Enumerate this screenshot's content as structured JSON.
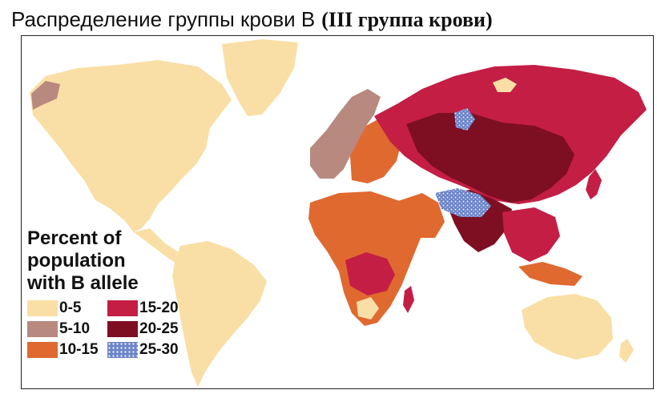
{
  "title": {
    "main": "Распределение группы крови В",
    "sub": "(III группа крови)"
  },
  "legend": {
    "title_lines": [
      "Percent of",
      "population",
      "with B allele"
    ],
    "items": [
      {
        "label": "0-5",
        "color": "#f9dfa6",
        "pattern": "none"
      },
      {
        "label": "15-20",
        "color": "#c41e45",
        "pattern": "none"
      },
      {
        "label": "5-10",
        "color": "#b8897f",
        "pattern": "none"
      },
      {
        "label": "20-25",
        "color": "#7e0f23",
        "pattern": "none"
      },
      {
        "label": "10-15",
        "color": "#e0692f",
        "pattern": "none"
      },
      {
        "label": "25-30",
        "color": "#6d86c9",
        "pattern": "dotted"
      }
    ]
  },
  "map": {
    "ocean_color": "#ffffff",
    "border_color": "#222222",
    "regions": [
      {
        "name": "North America",
        "band": "0-5"
      },
      {
        "name": "Alaska coast",
        "band": "5-10"
      },
      {
        "name": "Greenland",
        "band": "0-5"
      },
      {
        "name": "South America",
        "band": "0-5"
      },
      {
        "name": "Australia",
        "band": "0-5"
      },
      {
        "name": "Western Europe",
        "band": "5-10"
      },
      {
        "name": "Africa",
        "band": "10-15"
      },
      {
        "name": "Central Asia",
        "band": "20-25"
      },
      {
        "name": "Siberia",
        "band": "15-20"
      },
      {
        "name": "India",
        "band": "20-25"
      },
      {
        "name": "Himalaya spot",
        "band": "25-30"
      }
    ]
  }
}
